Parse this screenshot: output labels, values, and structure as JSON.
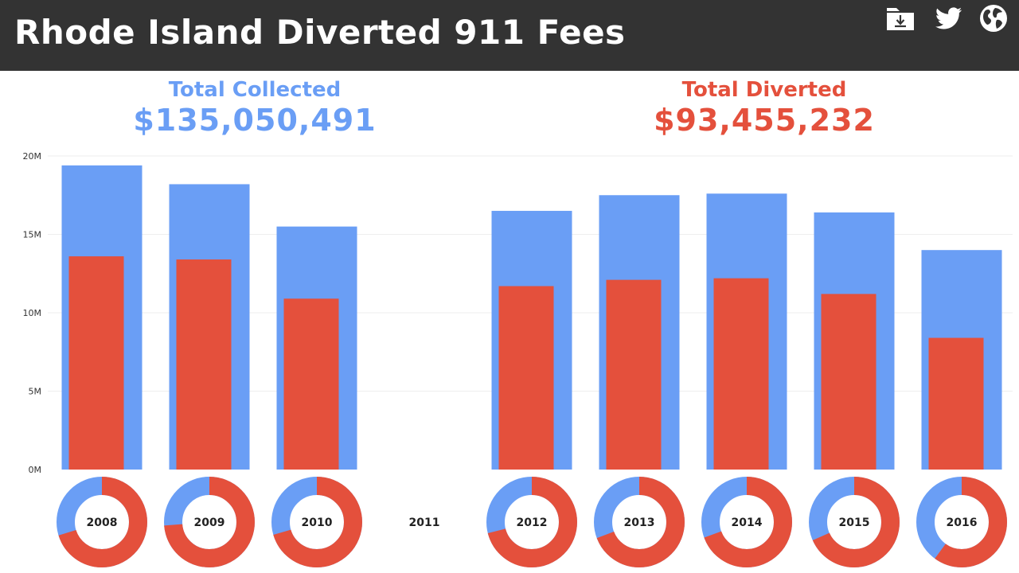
{
  "header": {
    "title": "Rhode Island Diverted 911 Fees",
    "icons": [
      "download-folder-icon",
      "twitter-icon",
      "globe-icon"
    ]
  },
  "totals": {
    "collected_label": "Total Collected",
    "collected_value": "$135,050,491",
    "diverted_label": "Total Diverted",
    "diverted_value": "$93,455,232"
  },
  "colors": {
    "collected": "#6a9ef5",
    "diverted": "#e4503c",
    "header_bg": "#333333",
    "grid": "#eeeeee"
  },
  "chart_data": {
    "type": "bar",
    "title": "Rhode Island Diverted 911 Fees",
    "categories": [
      "2008",
      "2009",
      "2010",
      "2011",
      "2012",
      "2013",
      "2014",
      "2015",
      "2016"
    ],
    "series": [
      {
        "name": "Total Collected",
        "values": [
          19.4,
          18.2,
          15.5,
          null,
          16.5,
          17.5,
          17.6,
          16.4,
          14.0
        ]
      },
      {
        "name": "Total Diverted",
        "values": [
          13.6,
          13.4,
          10.9,
          null,
          11.7,
          12.1,
          12.2,
          11.2,
          8.4
        ]
      }
    ],
    "units": "M",
    "ylim": [
      0,
      20
    ],
    "yticks": [
      0,
      5,
      10,
      15,
      20
    ],
    "ytick_labels": [
      "0M",
      "5M",
      "10M",
      "15M",
      "20M"
    ],
    "xlabel": "",
    "ylabel": "",
    "donuts": "per-year share of collected fees diverted (red) vs retained (blue), labeled by year"
  }
}
